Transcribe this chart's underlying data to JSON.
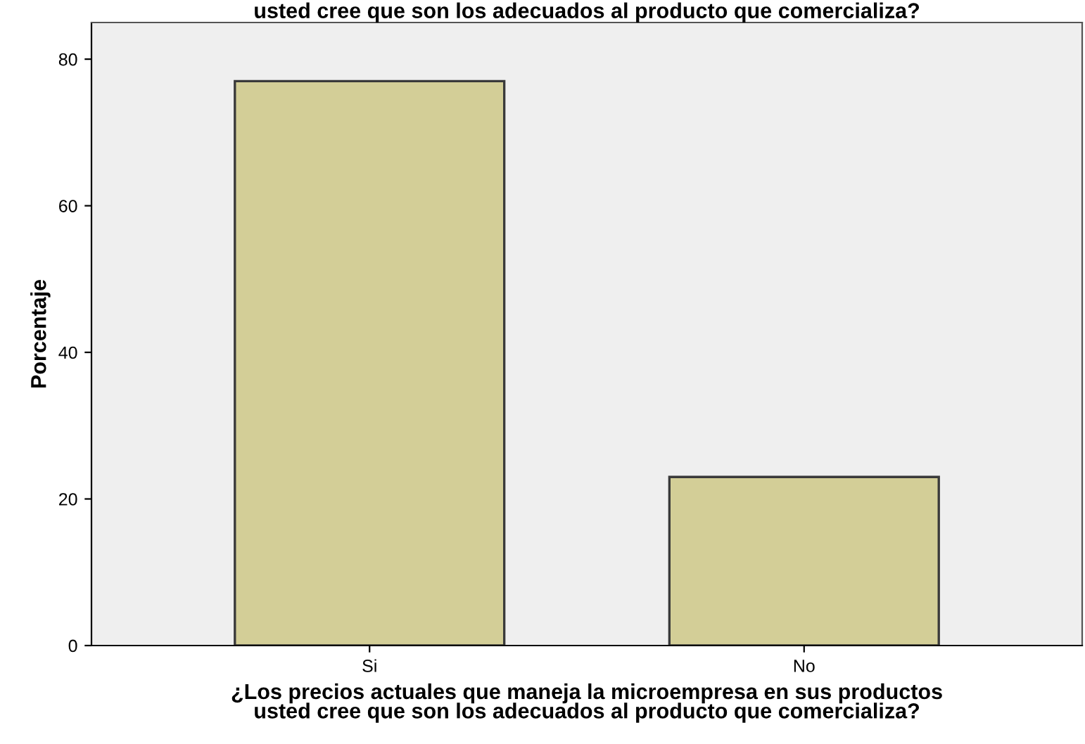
{
  "chart_data": {
    "type": "bar",
    "title": "usted cree que son los adecuados al producto que comercializa?",
    "xlabel": "¿Los precios actuales que maneja la microempresa en sus productos\nusted cree que son los adecuados al producto que comercializa?",
    "ylabel": "Porcentaje",
    "categories": [
      "Si",
      "No"
    ],
    "values": [
      77,
      23
    ],
    "color": "#d3ce97",
    "ylim": [
      0,
      85
    ],
    "yticks": [
      0,
      20,
      40,
      60,
      80
    ],
    "grid": false
  }
}
